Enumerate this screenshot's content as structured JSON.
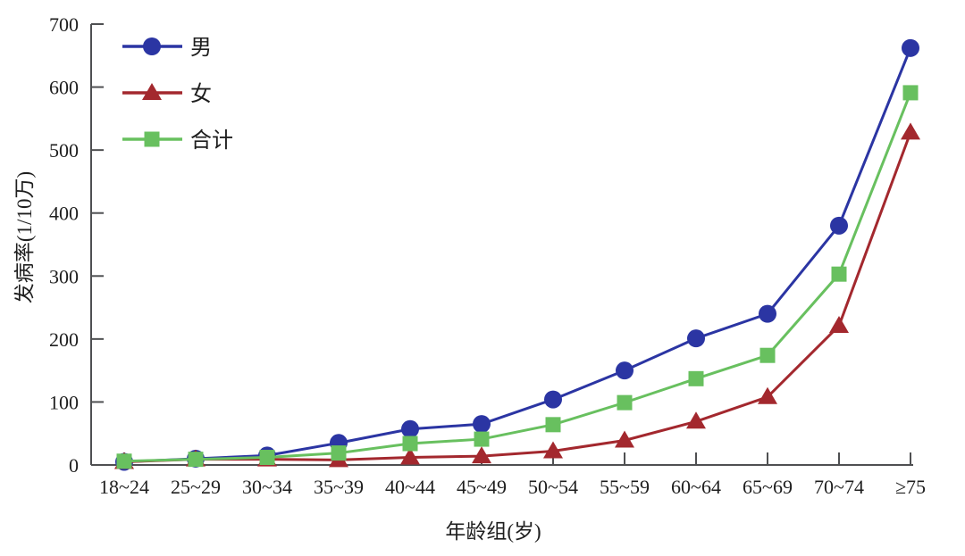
{
  "chart_data": {
    "type": "line",
    "title": "",
    "xlabel": "年龄组(岁)",
    "ylabel": "发病率(1/10万)",
    "categories": [
      "18~24",
      "25~29",
      "30~34",
      "35~39",
      "40~44",
      "45~49",
      "50~54",
      "55~59",
      "60~64",
      "65~69",
      "70~74",
      "≥75"
    ],
    "ylim": [
      0,
      700
    ],
    "y_ticks": [
      0,
      100,
      200,
      300,
      400,
      500,
      600,
      700
    ],
    "grid": false,
    "legend_position": "top-left-inside",
    "series": [
      {
        "key": "male",
        "name": "男",
        "marker": "circle",
        "color": "#2b35a3",
        "values": [
          5,
          10,
          15,
          35,
          57,
          65,
          104,
          150,
          201,
          240,
          380,
          662
        ]
      },
      {
        "key": "female",
        "name": "女",
        "marker": "triangle",
        "color": "#a3282e",
        "values": [
          5,
          9,
          9,
          8,
          12,
          14,
          22,
          39,
          69,
          108,
          221,
          528
        ]
      },
      {
        "key": "total",
        "name": "合计",
        "marker": "square",
        "color": "#68c05f",
        "values": [
          6,
          9,
          12,
          19,
          34,
          41,
          64,
          99,
          137,
          174,
          303,
          591
        ]
      }
    ]
  }
}
